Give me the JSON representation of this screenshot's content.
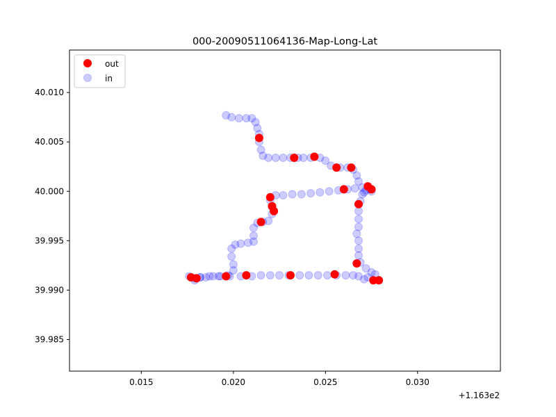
{
  "chart_data": {
    "type": "scatter",
    "title": "000-20090511064136-Map-Long-Lat",
    "xlabel": "",
    "ylabel": "",
    "x_offset_label": "+1.163e2",
    "x_offset": 116.3,
    "xlim": [
      0.0111,
      0.0345
    ],
    "ylim": [
      39.9818,
      40.0143
    ],
    "x_ticks": [
      0.015,
      0.02,
      0.025,
      0.03
    ],
    "x_tick_labels": [
      "0.015",
      "0.020",
      "0.025",
      "0.030"
    ],
    "y_ticks": [
      39.985,
      39.99,
      39.995,
      40.0,
      40.005,
      40.01
    ],
    "y_tick_labels": [
      "39.985",
      "39.990",
      "39.995",
      "40.000",
      "40.005",
      "40.010"
    ],
    "grid": false,
    "legend_position": "top-left",
    "legend": [
      {
        "label": "out",
        "color": "#ff0000"
      },
      {
        "label": "in",
        "color": "#0000ff"
      }
    ],
    "series": [
      {
        "name": "in",
        "color": "#0000ff",
        "alpha": 0.2,
        "points": [
          [
            0.0196,
            40.0077
          ],
          [
            0.0199,
            40.0075
          ],
          [
            0.0203,
            40.0074
          ],
          [
            0.0207,
            40.0074
          ],
          [
            0.021,
            40.0074
          ],
          [
            0.0212,
            40.007
          ],
          [
            0.0213,
            40.0064
          ],
          [
            0.0214,
            40.0058
          ],
          [
            0.0214,
            40.005
          ],
          [
            0.0215,
            40.0042
          ],
          [
            0.0216,
            40.0036
          ],
          [
            0.0219,
            40.0034
          ],
          [
            0.0223,
            40.0034
          ],
          [
            0.0227,
            40.0034
          ],
          [
            0.0231,
            40.0034
          ],
          [
            0.0235,
            40.0034
          ],
          [
            0.0238,
            40.0034
          ],
          [
            0.0242,
            40.0034
          ],
          [
            0.0247,
            40.0034
          ],
          [
            0.025,
            40.0031
          ],
          [
            0.0253,
            40.0026
          ],
          [
            0.0258,
            40.0024
          ],
          [
            0.0262,
            40.0024
          ],
          [
            0.0265,
            40.0022
          ],
          [
            0.0267,
            40.0016
          ],
          [
            0.0268,
            40.001
          ],
          [
            0.027,
            40.0004
          ],
          [
            0.0266,
            40.0003
          ],
          [
            0.0262,
            40.0002
          ],
          [
            0.0257,
            40.0001
          ],
          [
            0.0252,
            40.0
          ],
          [
            0.0247,
            39.9999
          ],
          [
            0.0242,
            39.9998
          ],
          [
            0.0237,
            39.9997
          ],
          [
            0.0232,
            39.9997
          ],
          [
            0.0227,
            39.9996
          ],
          [
            0.0223,
            39.9996
          ],
          [
            0.022,
            39.9991
          ],
          [
            0.0221,
            39.9984
          ],
          [
            0.0221,
            39.9977
          ],
          [
            0.0219,
            39.997
          ],
          [
            0.0216,
            39.9969
          ],
          [
            0.0213,
            39.9968
          ],
          [
            0.0211,
            39.9963
          ],
          [
            0.0211,
            39.9955
          ],
          [
            0.0211,
            39.9949
          ],
          [
            0.0208,
            39.9948
          ],
          [
            0.0204,
            39.9947
          ],
          [
            0.0201,
            39.9946
          ],
          [
            0.0199,
            39.9942
          ],
          [
            0.0199,
            39.9934
          ],
          [
            0.02,
            39.9926
          ],
          [
            0.02,
            39.992
          ],
          [
            0.0197,
            39.9915
          ],
          [
            0.0193,
            39.9914
          ],
          [
            0.0189,
            39.9914
          ],
          [
            0.0185,
            39.9913
          ],
          [
            0.0182,
            39.9913
          ],
          [
            0.0179,
            39.9912
          ],
          [
            0.0176,
            39.9914
          ],
          [
            0.0177,
            39.9913
          ],
          [
            0.0179,
            39.991
          ],
          [
            0.0182,
            39.9913
          ],
          [
            0.0187,
            39.9914
          ],
          [
            0.0192,
            39.9914
          ],
          [
            0.0198,
            39.9914
          ],
          [
            0.0204,
            39.9914
          ],
          [
            0.021,
            39.9914
          ],
          [
            0.0215,
            39.9915
          ],
          [
            0.022,
            39.9915
          ],
          [
            0.0225,
            39.9915
          ],
          [
            0.023,
            39.9915
          ],
          [
            0.0236,
            39.9915
          ],
          [
            0.0241,
            39.9915
          ],
          [
            0.0246,
            39.9915
          ],
          [
            0.0251,
            39.9915
          ],
          [
            0.0256,
            39.9915
          ],
          [
            0.0261,
            39.9915
          ],
          [
            0.0265,
            39.9915
          ],
          [
            0.0268,
            39.9914
          ],
          [
            0.0271,
            39.9911
          ],
          [
            0.0273,
            39.9913
          ],
          [
            0.0275,
            39.9918
          ],
          [
            0.0277,
            39.9916
          ],
          [
            0.0272,
            39.9922
          ],
          [
            0.0269,
            39.9928
          ],
          [
            0.0268,
            39.9935
          ],
          [
            0.0268,
            39.9942
          ],
          [
            0.0268,
            39.995
          ],
          [
            0.0267,
            39.9957
          ],
          [
            0.0268,
            39.9964
          ],
          [
            0.0268,
            39.9972
          ],
          [
            0.0268,
            39.998
          ],
          [
            0.0269,
            39.999
          ],
          [
            0.027,
            39.9997
          ],
          [
            0.0272,
            40.0001
          ],
          [
            0.0274,
            40.0002
          ],
          [
            0.0275,
            40.0
          ],
          [
            0.0271,
            39.9999
          ]
        ]
      },
      {
        "name": "out",
        "color": "#ff0000",
        "alpha": 1.0,
        "points": [
          [
            0.0214,
            40.0054
          ],
          [
            0.0233,
            40.0034
          ],
          [
            0.0244,
            40.0035
          ],
          [
            0.0256,
            40.0024
          ],
          [
            0.0264,
            40.0024
          ],
          [
            0.026,
            40.0002
          ],
          [
            0.0273,
            40.0005
          ],
          [
            0.0275,
            40.0002
          ],
          [
            0.022,
            39.9994
          ],
          [
            0.0221,
            39.9985
          ],
          [
            0.0222,
            39.998
          ],
          [
            0.0215,
            39.9969
          ],
          [
            0.0268,
            39.9987
          ],
          [
            0.0267,
            39.9927
          ],
          [
            0.0255,
            39.9916
          ],
          [
            0.0231,
            39.9915
          ],
          [
            0.0207,
            39.9915
          ],
          [
            0.0196,
            39.9914
          ],
          [
            0.0177,
            39.9913
          ],
          [
            0.018,
            39.9912
          ],
          [
            0.0276,
            39.991
          ],
          [
            0.0279,
            39.991
          ]
        ]
      }
    ]
  }
}
